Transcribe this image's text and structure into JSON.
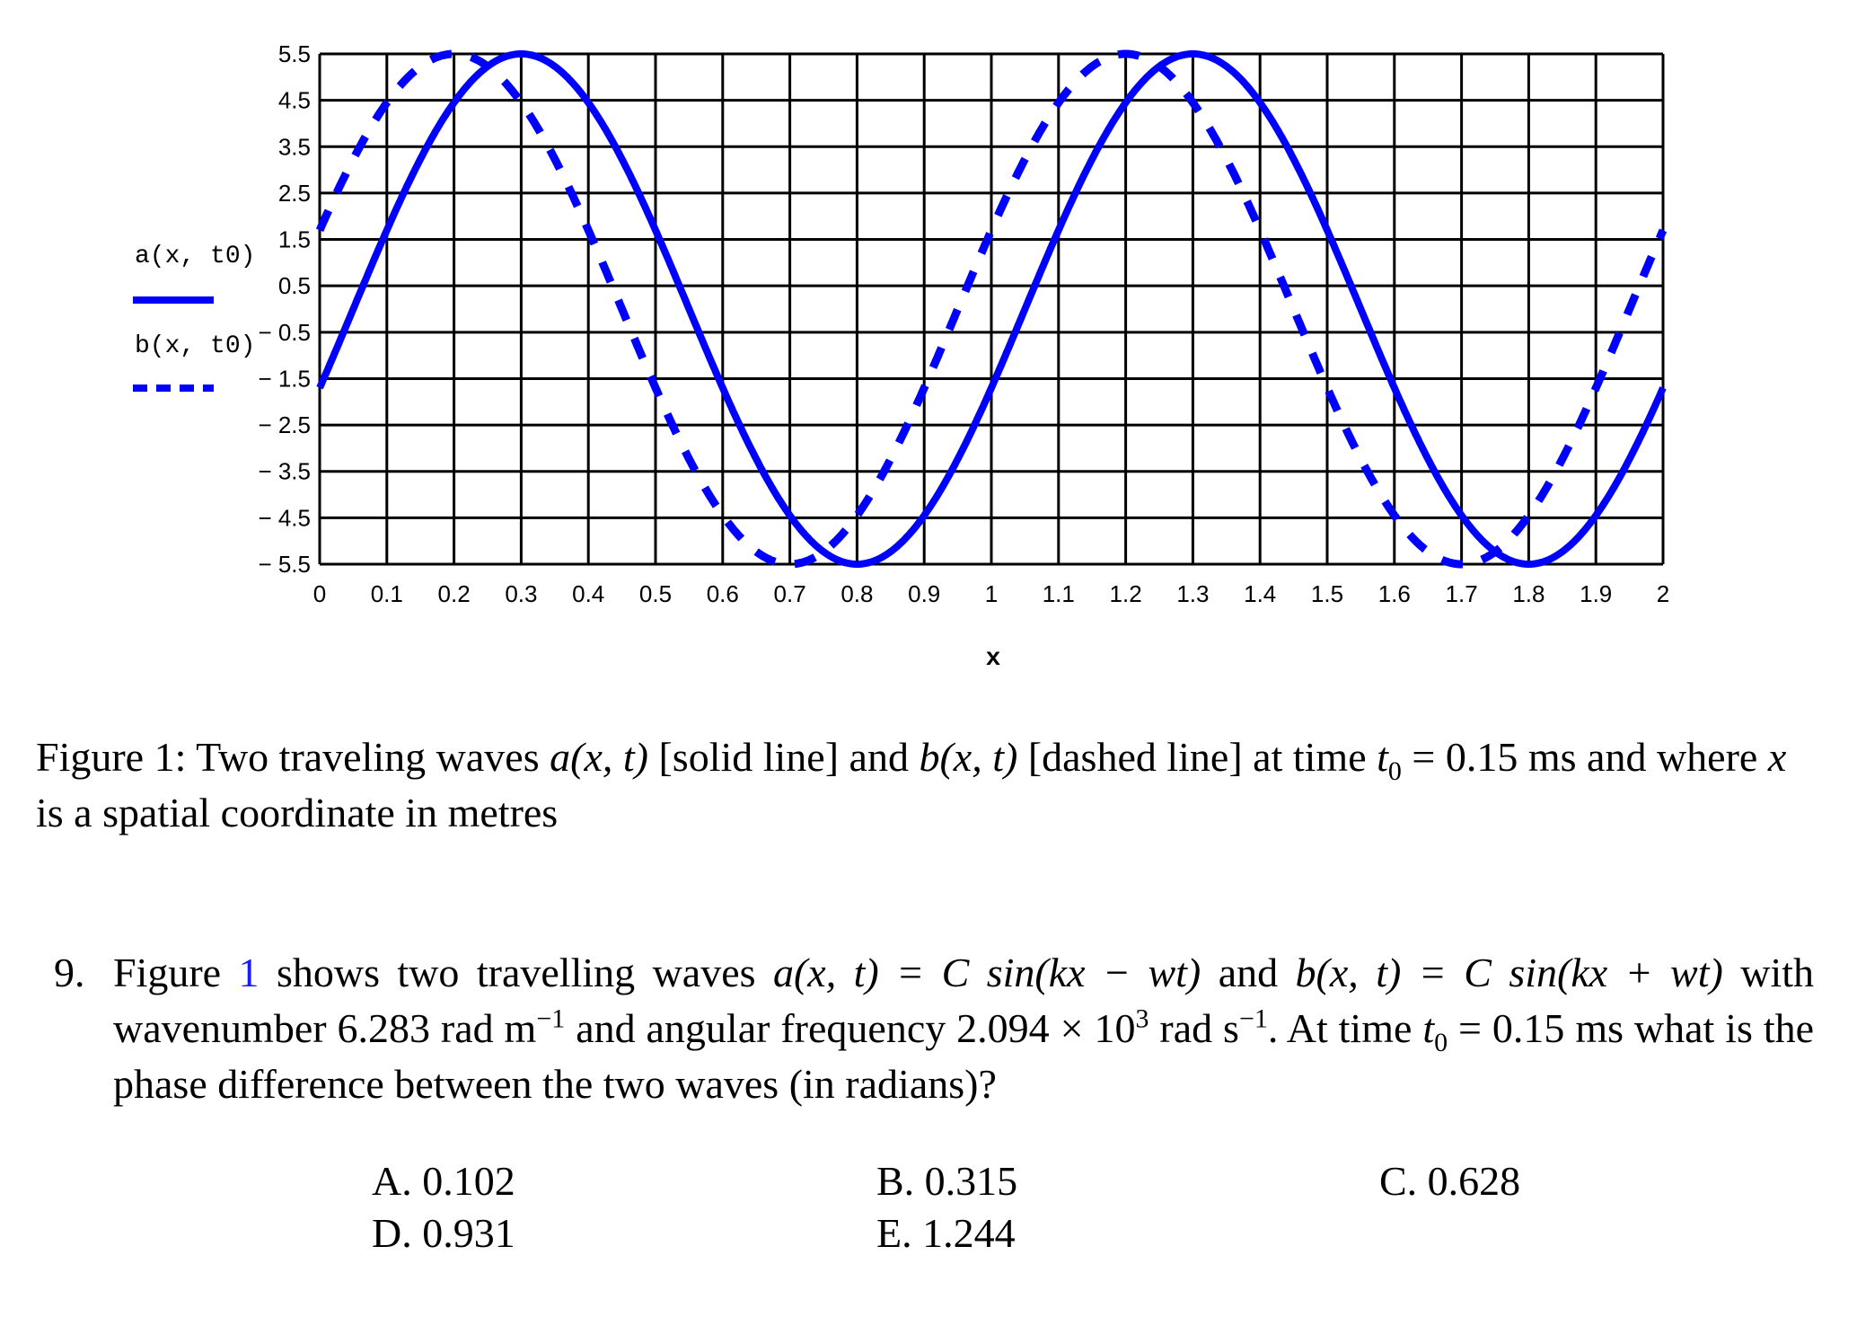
{
  "chart_data": {
    "type": "line",
    "xlabel": "x",
    "x_ticks": [
      "0",
      "0.1",
      "0.2",
      "0.3",
      "0.4",
      "0.5",
      "0.6",
      "0.7",
      "0.8",
      "0.9",
      "1",
      "1.1",
      "1.2",
      "1.3",
      "1.4",
      "1.5",
      "1.6",
      "1.7",
      "1.8",
      "1.9",
      "2"
    ],
    "y_ticks": [
      "5.5",
      "4.5",
      "3.5",
      "2.5",
      "1.5",
      "0.5",
      "− 0.5",
      "− 1.5",
      "− 2.5",
      "− 3.5",
      "− 4.5",
      "− 5.5"
    ],
    "xlim": [
      0,
      2
    ],
    "ylim": [
      -5.5,
      5.5
    ],
    "grid": true,
    "legend_placement": "left",
    "series": [
      {
        "name": "a(x, t0)",
        "style": "solid",
        "color": "#0000ff",
        "amplitude": 5.5,
        "wavenumber": 6.283,
        "phase_at_x0": -0.314
      },
      {
        "name": "b(x, t0)",
        "style": "dashed",
        "color": "#0000ff",
        "amplitude": 5.5,
        "wavenumber": 6.283,
        "phase_at_x0": 0.314
      }
    ]
  },
  "caption": {
    "label": "Figure 1:",
    "part1": "Two traveling waves",
    "a_sym": "a(x, t)",
    "part2": "[solid line] and",
    "b_sym": "b(x, t)",
    "part3": "[dashed line] at time",
    "t_sym": "t",
    "t_sub": "0",
    "part4": "= 0.15 ms and where",
    "x_sym": "x",
    "part5": "is a spatial coordinate in metres"
  },
  "question": {
    "number": "9.",
    "s1": "Figure",
    "ref": "1",
    "s2": "shows two travelling waves",
    "eq_a": "a(x, t) = C sin(kx − wt)",
    "s3": "and",
    "eq_b": "b(x, t) = C sin(kx + wt)",
    "s4": "with wavenumber 6.283 rad m",
    "s4_sup": "−1",
    "s5": "and angular frequency 2.094 × 10",
    "s5_sup": "3",
    "s6": "rad s",
    "s6_sup": "−1",
    "s7": ". At time",
    "t_sym": "t",
    "t_sub": "0",
    "s8": "= 0.15 ms what is the phase difference between the two waves (in radians)?"
  },
  "options": [
    {
      "label": "A. 0.102"
    },
    {
      "label": "B. 0.315"
    },
    {
      "label": "C. 0.628"
    },
    {
      "label": "D. 0.931"
    },
    {
      "label": "E. 1.244"
    }
  ]
}
